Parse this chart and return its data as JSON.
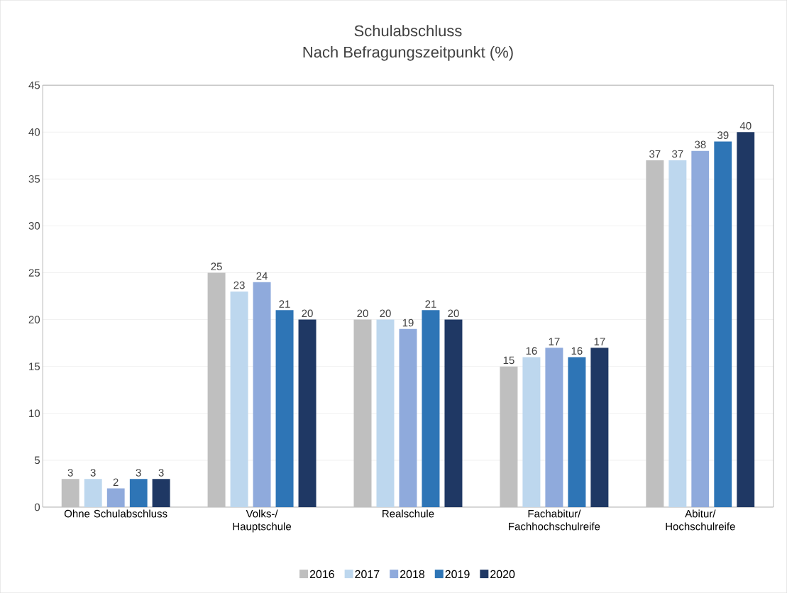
{
  "chart_data": {
    "type": "bar",
    "title": "Schulabschluss",
    "subtitle": "Nach Befragungszeitpunkt (%)",
    "categories": [
      "Ohne Schulabschluss",
      "Volks-/\nHauptschule",
      "Realschule",
      "Fachabitur/\nFachhochschulreife",
      "Abitur/\nHochschulreife"
    ],
    "series": [
      {
        "name": "2016",
        "color": "#bfbfbf",
        "values": [
          3,
          25,
          20,
          15,
          37
        ]
      },
      {
        "name": "2017",
        "color": "#bdd7ee",
        "values": [
          3,
          23,
          20,
          16,
          37
        ]
      },
      {
        "name": "2018",
        "color": "#8faadc",
        "values": [
          2,
          24,
          19,
          17,
          38
        ]
      },
      {
        "name": "2019",
        "color": "#2e75b6",
        "values": [
          3,
          21,
          21,
          16,
          39
        ]
      },
      {
        "name": "2020",
        "color": "#1f3864",
        "values": [
          3,
          20,
          20,
          17,
          40
        ]
      }
    ],
    "ylim": [
      0,
      45
    ],
    "yticks": [
      0,
      5,
      10,
      15,
      20,
      25,
      30,
      35,
      40,
      45
    ],
    "grid": "y",
    "legend": "bottom",
    "data_labels": true
  }
}
